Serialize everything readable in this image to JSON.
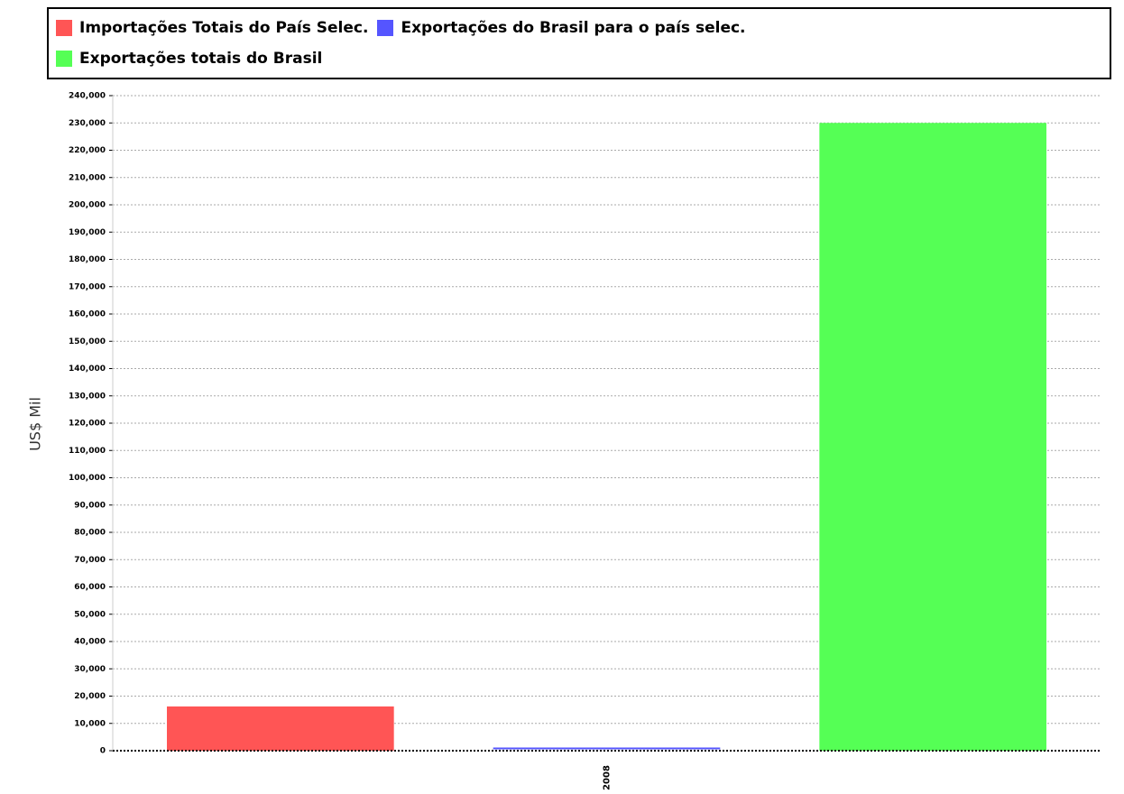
{
  "chart_data": {
    "type": "bar",
    "y_label": "US$ Mil",
    "categories": [
      "2008"
    ],
    "series": [
      {
        "name": "Importações Totais do País Selec.",
        "color": "#ff5555",
        "values": [
          16200
        ]
      },
      {
        "name": "Exportações do Brasil para o país selec.",
        "color": "#5555ff",
        "values": [
          500
        ]
      },
      {
        "name": "Exportações totais do Brasil",
        "color": "#55ff55",
        "values": [
          230000
        ]
      }
    ],
    "ylim": [
      0,
      240000
    ],
    "yticks": [
      0,
      {
        "value": 10000,
        "label": "10,000"
      },
      {
        "value": 20000,
        "label": "20,000"
      },
      {
        "value": 30000,
        "label": "30,000"
      },
      {
        "value": 40000,
        "label": "40,000"
      },
      {
        "value": 50000,
        "label": "50,000"
      },
      {
        "value": 60000,
        "label": "60,000"
      },
      {
        "value": 70000,
        "label": "70,000"
      },
      {
        "value": 80000,
        "label": "80,000"
      },
      {
        "value": 90000,
        "label": "90,000"
      },
      {
        "value": 100000,
        "label": "100,000"
      },
      {
        "value": 110000,
        "label": "110,000"
      },
      {
        "value": 120000,
        "label": "120,000"
      },
      {
        "value": 130000,
        "label": "130,000"
      },
      {
        "value": 140000,
        "label": "140,000"
      },
      {
        "value": 150000,
        "label": "150,000"
      },
      {
        "value": 160000,
        "label": "160,000"
      },
      {
        "value": 170000,
        "label": "170,000"
      },
      {
        "value": 180000,
        "label": "180,000"
      },
      {
        "value": 190000,
        "label": "190,000"
      },
      {
        "value": 200000,
        "label": "200,000"
      },
      {
        "value": 210000,
        "label": "210,000"
      },
      {
        "value": 220000,
        "label": "220,000"
      },
      {
        "value": 230000,
        "label": "230,000"
      },
      {
        "value": 240000,
        "label": "240,000"
      }
    ],
    "grid": true
  }
}
